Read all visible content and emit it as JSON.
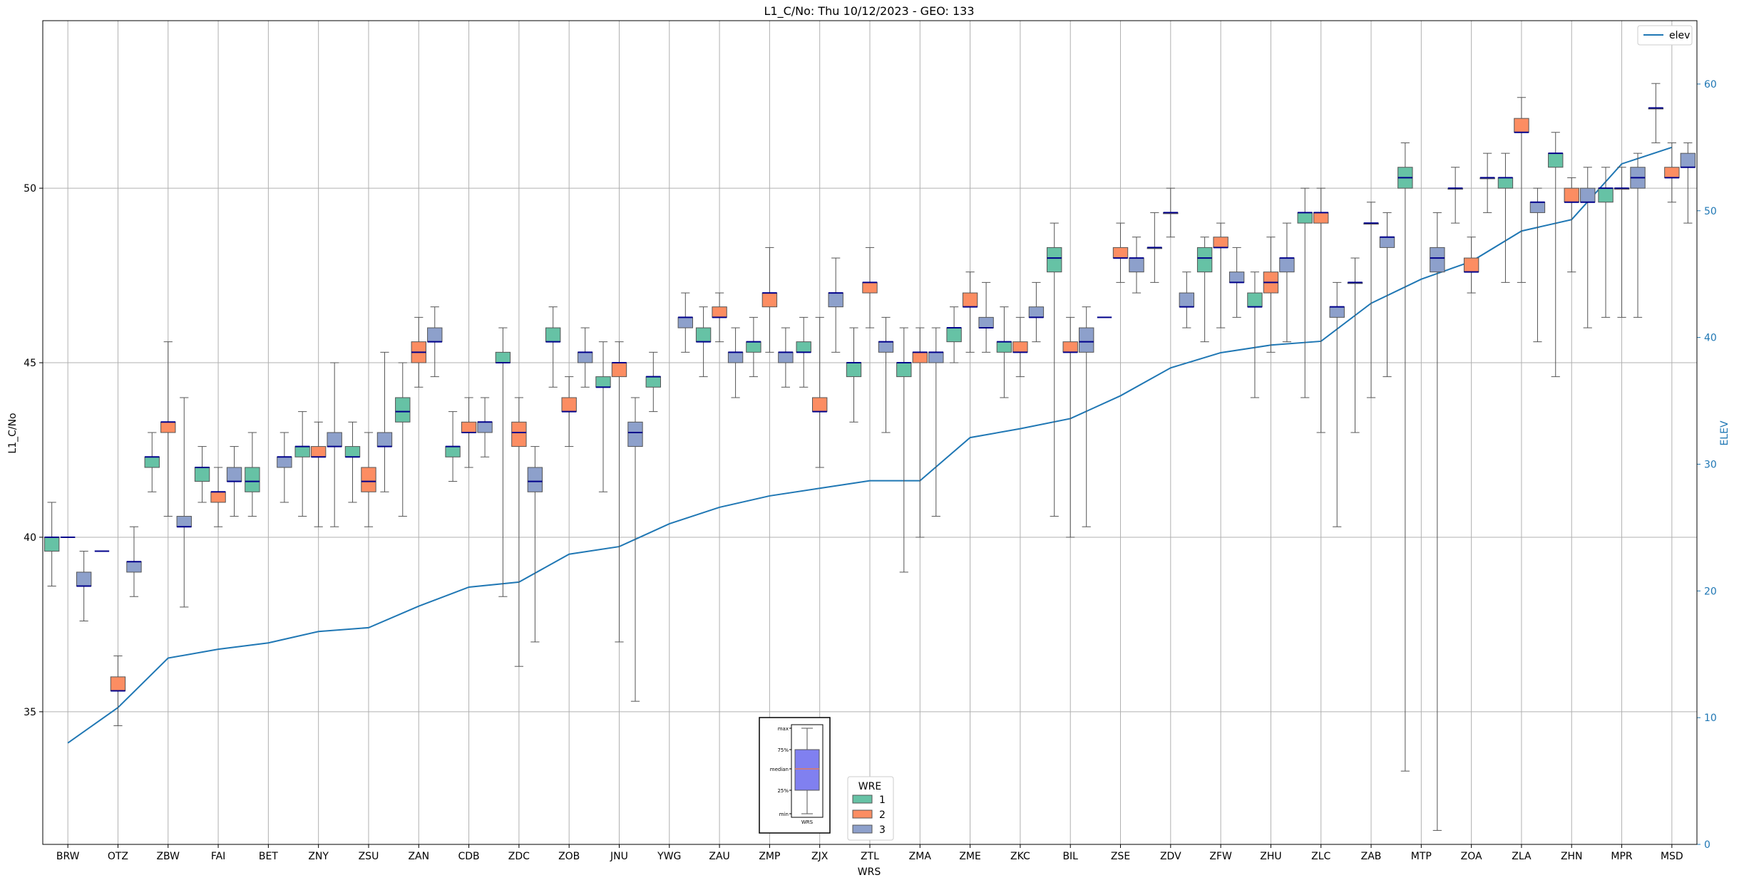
{
  "chart_data": {
    "type": "box",
    "title": "L1_C/No: Thu 10/12/2023 - GEO: 133",
    "xlabel": "WRS",
    "ylabel": "L1_C/No",
    "ylabel_right": "ELEV",
    "ylim": [
      31.2,
      54.8
    ],
    "ylim_right": [
      0,
      65
    ],
    "yticks": [
      35,
      40,
      45,
      50
    ],
    "yticks_right": [
      0,
      10,
      20,
      30,
      40,
      50,
      60
    ],
    "grid": true,
    "categories": [
      "BRW",
      "OTZ",
      "ZBW",
      "FAI",
      "BET",
      "ZNY",
      "ZSU",
      "ZAN",
      "CDB",
      "ZDC",
      "ZOB",
      "JNU",
      "YWG",
      "ZAU",
      "ZMP",
      "ZJX",
      "ZTL",
      "ZMA",
      "ZME",
      "ZKC",
      "BIL",
      "ZSE",
      "ZDV",
      "ZFW",
      "ZHU",
      "ZLC",
      "ZAB",
      "MTP",
      "ZOA",
      "ZLA",
      "ZHN",
      "MPR",
      "MSD"
    ],
    "legend_top": {
      "label": "elev",
      "color": "#1f77b4",
      "placement": "top-right"
    },
    "legend_bottom": {
      "title": "WRE",
      "entries": [
        {
          "label": "1",
          "color": "#66c2a5"
        },
        {
          "label": "2",
          "color": "#fc8d62"
        },
        {
          "label": "3",
          "color": "#8da0cb"
        }
      ],
      "placement": "bottom-center"
    },
    "key_inset": {
      "labels": [
        "max",
        "75%",
        "median",
        "25%",
        "min"
      ],
      "xlabel": "WRS"
    },
    "median_color": "#00008b",
    "elev_series": {
      "name": "elev",
      "color": "#1f77b4",
      "values": [
        8,
        10.8,
        14.7,
        15.4,
        15.9,
        16.8,
        17.1,
        18.8,
        20.3,
        20.7,
        22.9,
        23.5,
        25.3,
        26.6,
        27.5,
        28.1,
        28.7,
        28.7,
        32.1,
        32.8,
        33.6,
        35.4,
        37.6,
        38.8,
        39.4,
        39.7,
        42.7,
        44.6,
        46.0,
        48.4,
        49.3,
        53.7,
        55.0
      ]
    },
    "boxes": {
      "BRW": {
        "1": [
          38.6,
          39.6,
          40.0,
          40.0,
          41.0
        ],
        "2": null,
        "3": [
          37.6,
          38.6,
          38.6,
          39.0,
          39.6
        ],
        "x_median_only": {
          "2": 40.0
        }
      },
      "OTZ": {
        "1": null,
        "2": [
          34.6,
          35.6,
          35.6,
          36.0,
          36.6
        ],
        "3": [
          38.3,
          39.0,
          39.3,
          39.3,
          40.3
        ],
        "x_median_only": {
          "1": 39.6
        }
      },
      "ZBW": {
        "1": [
          41.3,
          42.0,
          42.3,
          42.3,
          43.0
        ],
        "2": [
          40.6,
          43.0,
          43.3,
          43.3,
          45.6
        ],
        "3": [
          38.0,
          40.3,
          40.3,
          40.6,
          44.0
        ]
      },
      "FAI": {
        "1": [
          41.0,
          41.6,
          42.0,
          42.0,
          42.6
        ],
        "2": [
          40.3,
          41.0,
          41.3,
          41.3,
          42.0
        ],
        "3": [
          40.6,
          41.6,
          41.6,
          42.0,
          42.6
        ]
      },
      "BET": {
        "1": [
          40.6,
          41.3,
          41.6,
          42.0,
          43.0
        ],
        "2": null,
        "3": [
          41.0,
          42.0,
          42.3,
          42.3,
          43.0
        ]
      },
      "ZNY": {
        "1": [
          40.6,
          42.3,
          42.6,
          42.6,
          43.6
        ],
        "2": [
          40.3,
          42.3,
          42.3,
          42.6,
          43.3
        ],
        "3": [
          40.3,
          42.6,
          42.6,
          43.0,
          45.0
        ]
      },
      "ZSU": {
        "1": [
          41.0,
          42.3,
          42.3,
          42.6,
          43.3
        ],
        "2": [
          40.3,
          41.3,
          41.6,
          42.0,
          43.0
        ],
        "3": [
          41.3,
          42.6,
          42.6,
          43.0,
          45.3
        ]
      },
      "ZAN": {
        "1": [
          40.6,
          43.3,
          43.6,
          44.0,
          45.0
        ],
        "2": [
          44.3,
          45.0,
          45.3,
          45.6,
          46.3
        ],
        "3": [
          44.6,
          45.6,
          45.6,
          46.0,
          46.6
        ]
      },
      "CDB": {
        "1": [
          41.6,
          42.3,
          42.6,
          42.6,
          43.6
        ],
        "2": [
          42.0,
          43.0,
          43.0,
          43.3,
          44.0
        ],
        "3": [
          42.3,
          43.0,
          43.3,
          43.3,
          44.0
        ]
      },
      "ZDC": {
        "1": [
          38.3,
          45.0,
          45.0,
          45.3,
          46.0
        ],
        "2": [
          36.3,
          42.6,
          43.0,
          43.3,
          44.0
        ],
        "3": [
          37.0,
          41.3,
          41.6,
          42.0,
          42.6
        ]
      },
      "ZOB": {
        "1": [
          44.3,
          45.6,
          45.6,
          46.0,
          46.6
        ],
        "2": [
          42.6,
          43.6,
          43.6,
          44.0,
          44.6
        ],
        "3": [
          44.3,
          45.0,
          45.3,
          45.3,
          46.0
        ]
      },
      "JNU": {
        "1": [
          41.3,
          44.3,
          44.3,
          44.6,
          45.6
        ],
        "2": [
          37.0,
          44.6,
          45.0,
          45.0,
          45.6
        ],
        "3": [
          35.3,
          42.6,
          43.0,
          43.3,
          44.0
        ]
      },
      "YWG": {
        "1": [
          43.6,
          44.3,
          44.6,
          44.6,
          45.3
        ],
        "2": null,
        "3": [
          45.3,
          46.0,
          46.3,
          46.3,
          47.0
        ]
      },
      "ZAU": {
        "1": [
          44.6,
          45.6,
          45.6,
          46.0,
          46.6
        ],
        "2": [
          45.6,
          46.3,
          46.3,
          46.6,
          47.0
        ],
        "3": [
          44.0,
          45.0,
          45.3,
          45.3,
          46.0
        ]
      },
      "ZMP": {
        "1": [
          44.6,
          45.3,
          45.6,
          45.6,
          46.3
        ],
        "2": [
          45.3,
          46.6,
          47.0,
          47.0,
          48.3
        ],
        "3": [
          44.3,
          45.0,
          45.3,
          45.3,
          46.0
        ]
      },
      "ZJX": {
        "1": [
          44.3,
          45.3,
          45.3,
          45.6,
          46.3
        ],
        "2": [
          42.0,
          43.6,
          43.6,
          44.0,
          46.3
        ],
        "3": [
          45.3,
          46.6,
          47.0,
          47.0,
          48.0
        ]
      },
      "ZTL": {
        "1": [
          43.3,
          44.6,
          45.0,
          45.0,
          46.0
        ],
        "2": [
          46.0,
          47.0,
          47.3,
          47.3,
          48.3
        ],
        "3": [
          43.0,
          45.3,
          45.6,
          45.6,
          46.3
        ]
      },
      "ZMA": {
        "1": [
          39.0,
          44.6,
          45.0,
          45.0,
          46.0
        ],
        "2": [
          40.0,
          45.0,
          45.3,
          45.3,
          46.0
        ],
        "3": [
          40.6,
          45.0,
          45.3,
          45.3,
          46.0
        ]
      },
      "ZME": {
        "1": [
          45.0,
          45.6,
          46.0,
          46.0,
          46.6
        ],
        "2": [
          45.3,
          46.6,
          46.6,
          47.0,
          47.6
        ],
        "3": [
          45.3,
          46.0,
          46.0,
          46.3,
          47.3
        ]
      },
      "ZKC": {
        "1": [
          44.0,
          45.3,
          45.6,
          45.6,
          46.6
        ],
        "2": [
          44.6,
          45.3,
          45.3,
          45.6,
          46.3
        ],
        "3": [
          45.6,
          46.3,
          46.3,
          46.6,
          47.3
        ]
      },
      "BIL": {
        "1": [
          40.6,
          47.6,
          48.0,
          48.3,
          49.0
        ],
        "2": [
          40.0,
          45.3,
          45.3,
          45.6,
          46.3
        ],
        "3": [
          40.3,
          45.3,
          45.6,
          46.0,
          46.6
        ]
      },
      "ZSE": {
        "1": null,
        "2": [
          47.3,
          48.0,
          48.0,
          48.3,
          49.0
        ],
        "3": [
          47.0,
          47.6,
          48.0,
          48.0,
          48.6
        ],
        "x_median_only": {
          "1": 46.3
        }
      },
      "ZDV": {
        "1": [
          47.3,
          48.3,
          48.3,
          48.3,
          49.3
        ],
        "2": [
          48.6,
          49.3,
          49.3,
          49.3,
          50.0
        ],
        "3": [
          46.0,
          46.6,
          46.6,
          47.0,
          47.6
        ]
      },
      "ZFW": {
        "1": [
          45.6,
          47.6,
          48.0,
          48.3,
          48.6
        ],
        "2": [
          46.0,
          48.3,
          48.3,
          48.6,
          49.0
        ],
        "3": [
          46.3,
          47.3,
          47.3,
          47.6,
          48.3
        ]
      },
      "ZHU": {
        "1": [
          44.0,
          46.6,
          46.6,
          47.0,
          47.6
        ],
        "2": [
          45.3,
          47.0,
          47.3,
          47.6,
          48.6
        ],
        "3": [
          45.6,
          47.6,
          48.0,
          48.0,
          49.0
        ]
      },
      "ZLC": {
        "1": [
          44.0,
          49.0,
          49.3,
          49.3,
          50.0
        ],
        "2": [
          43.0,
          49.0,
          49.3,
          49.3,
          50.0
        ],
        "3": [
          40.3,
          46.3,
          46.6,
          46.6,
          47.3
        ]
      },
      "ZAB": {
        "1": [
          43.0,
          47.3,
          47.3,
          47.3,
          48.0
        ],
        "2": [
          44.0,
          49.0,
          49.0,
          49.0,
          49.6
        ],
        "3": [
          44.6,
          48.3,
          48.6,
          48.6,
          49.3
        ]
      },
      "MTP": {
        "1": [
          33.3,
          50.0,
          50.3,
          50.6,
          51.3
        ],
        "2": null,
        "3": [
          31.6,
          47.6,
          48.0,
          48.3,
          49.3
        ]
      },
      "ZOA": {
        "1": [
          49.0,
          50.0,
          50.0,
          50.0,
          50.6
        ],
        "2": [
          47.0,
          47.6,
          47.6,
          48.0,
          48.6
        ],
        "3": [
          49.3,
          50.3,
          50.3,
          50.3,
          51.0
        ]
      },
      "ZLA": {
        "1": [
          47.3,
          50.0,
          50.3,
          50.3,
          51.0
        ],
        "2": [
          47.3,
          51.6,
          51.6,
          52.0,
          52.6
        ],
        "3": [
          45.6,
          49.3,
          49.6,
          49.6,
          50.0
        ]
      },
      "ZHN": {
        "1": [
          44.6,
          50.6,
          51.0,
          51.0,
          51.6
        ],
        "2": [
          47.6,
          49.6,
          49.6,
          50.0,
          50.3
        ],
        "3": [
          46.0,
          49.6,
          49.6,
          50.0,
          50.6
        ]
      },
      "MPR": {
        "1": [
          46.3,
          49.6,
          50.0,
          50.0,
          50.6
        ],
        "2": [
          46.3,
          50.0,
          50.0,
          50.0,
          50.6
        ],
        "3": [
          46.3,
          50.0,
          50.3,
          50.6,
          51.0
        ]
      },
      "MSD": {
        "1": [
          51.3,
          52.3,
          52.3,
          52.3,
          53.0
        ],
        "2": [
          49.6,
          50.3,
          50.3,
          50.6,
          51.3
        ],
        "3": [
          49.0,
          50.6,
          50.6,
          51.0,
          51.3
        ]
      }
    }
  }
}
